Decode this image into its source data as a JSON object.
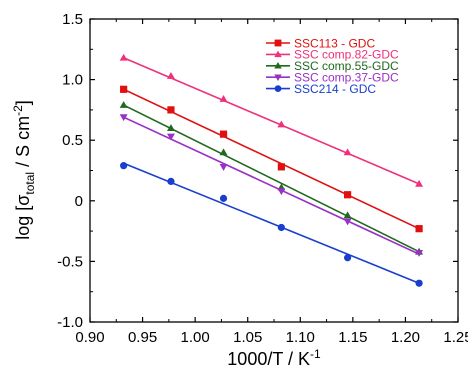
{
  "chart_data": {
    "type": "scatter",
    "xlabel": {
      "main": "1000/T / K",
      "sup": "-1"
    },
    "ylabel": {
      "p1": "log [σ",
      "sub": "total",
      "p2": " / S cm",
      "sup": "-2",
      "p3": "]"
    },
    "xlim": [
      0.9,
      1.25
    ],
    "ylim": [
      -1.0,
      1.5
    ],
    "xticks": [
      "0.90",
      "0.95",
      "1.00",
      "1.05",
      "1.10",
      "1.15",
      "1.20",
      "1.25"
    ],
    "yticks": [
      "-1.0",
      "-0.5",
      "0",
      "0.5",
      "1.0",
      "1.5"
    ],
    "xtick_values": [
      0.9,
      0.95,
      1.0,
      1.05,
      1.1,
      1.15,
      1.2,
      1.25
    ],
    "ytick_values": [
      -1.0,
      -0.5,
      0,
      0.5,
      1.0,
      1.5
    ],
    "legend_position": "top-right",
    "x": [
      0.932,
      0.977,
      1.027,
      1.082,
      1.145,
      1.213
    ],
    "series": [
      {
        "name": "SSC113 - GDC",
        "color": "#e01010",
        "marker": "square",
        "values": [
          0.92,
          0.75,
          0.55,
          0.28,
          0.05,
          -0.23
        ],
        "fit": [
          0.92,
          -0.23
        ]
      },
      {
        "name": "SSC comp.82-GDC",
        "color": "#f0307a",
        "marker": "triangle-up",
        "values": [
          1.18,
          1.03,
          0.84,
          0.63,
          0.4,
          0.14
        ],
        "fit": [
          1.18,
          0.14
        ]
      },
      {
        "name": "SSC comp.55-GDC",
        "color": "#1f6a1f",
        "marker": "triangle-up",
        "values": [
          0.79,
          0.6,
          0.4,
          0.11,
          -0.12,
          -0.42
        ],
        "fit": [
          0.79,
          -0.42
        ]
      },
      {
        "name": "SSC comp.37-GDC",
        "color": "#9a30c8",
        "marker": "triangle-down",
        "values": [
          0.69,
          0.53,
          0.28,
          0.08,
          -0.17,
          -0.43
        ],
        "fit": [
          0.69,
          -0.44
        ]
      },
      {
        "name": "SSC214 - GDC",
        "color": "#1a3fcc",
        "marker": "circle",
        "values": [
          0.29,
          0.16,
          0.02,
          -0.22,
          -0.47,
          -0.68
        ],
        "fit": [
          0.31,
          -0.68
        ]
      }
    ]
  }
}
